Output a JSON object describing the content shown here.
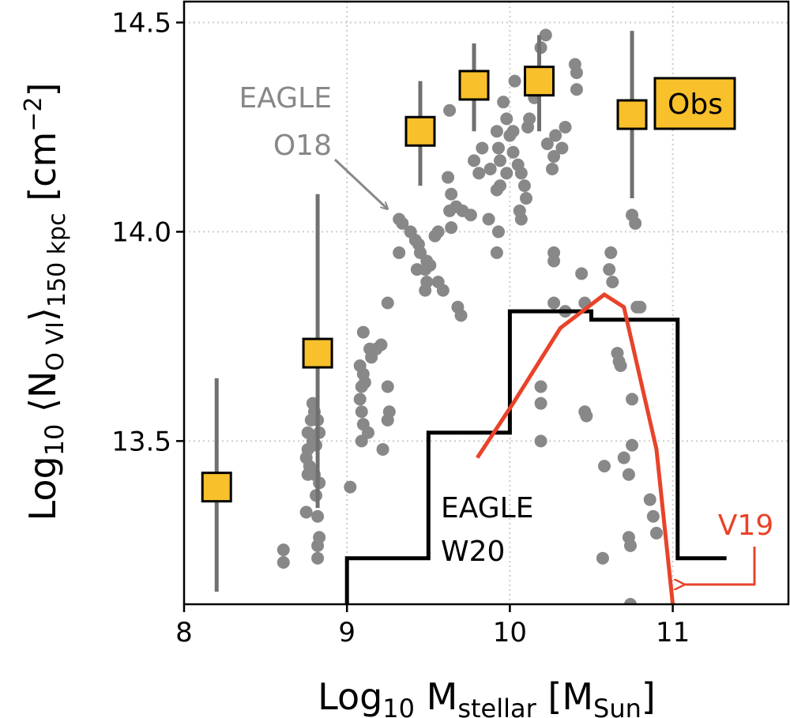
{
  "chart_data": {
    "type": "scatter",
    "xlabel": [
      "Log",
      "10",
      " M",
      "stellar",
      " [M",
      "Sun",
      "]"
    ],
    "ylabel": [
      "Log",
      "10",
      " ⟨N",
      "O VI",
      "⟩",
      "150 kpc",
      " [cm",
      "−2",
      "]"
    ],
    "xlim": [
      8,
      11.71
    ],
    "ylim": [
      13.11,
      14.55
    ],
    "xticks": [
      8,
      9,
      10,
      11
    ],
    "yticks": [
      13.5,
      {
        "value": 14,
        "label": "14.0"
      },
      14.5
    ],
    "grid": true,
    "series": [
      {
        "name": [
          "EAGLE",
          "O18"
        ],
        "type": "scatter",
        "color": "#888888",
        "x": [
          8.61,
          8.61,
          8.75,
          8.76,
          8.79,
          8.8,
          8.78,
          8.76,
          8.79,
          8.81,
          8.75,
          8.77,
          8.76,
          8.8,
          8.83,
          8.81,
          8.82,
          8.83,
          8.82,
          8.82,
          8.83,
          8.82,
          9.02,
          9.08,
          9.09,
          9.1,
          9.09,
          9.13,
          9.1,
          9.09,
          9.11,
          9.14,
          9.15,
          9.18,
          9.21,
          9.25,
          9.22,
          9.26,
          9.25,
          9.25,
          9.08,
          9.1,
          9.32,
          9.32,
          9.34,
          9.39,
          9.42,
          9.44,
          9.45,
          9.49,
          9.48,
          9.43,
          9.51,
          9.49,
          9.54,
          9.56,
          9.48,
          9.56,
          9.59,
          9.68,
          9.7,
          9.71,
          9.63,
          9.67,
          9.76,
          9.64,
          9.62,
          9.64,
          9.63,
          9.78,
          9.81,
          9.83,
          9.87,
          9.88,
          9.92,
          9.93,
          9.94,
          9.94,
          9.98,
          9.92,
          9.93,
          9.92,
          9.96,
          9.98,
          10.0,
          10.02,
          10.02,
          10.03,
          10.05,
          10.07,
          10.09,
          10.06,
          10.07,
          10.1,
          10.11,
          10.12,
          10.15,
          10.17,
          10.19,
          10.22,
          10.23,
          10.26,
          10.27,
          10.28,
          10.32,
          10.34,
          10.27,
          10.27,
          10.27,
          10.19,
          10.19,
          10.19,
          10.34,
          10.4,
          10.41,
          10.41,
          10.44,
          10.46,
          10.46,
          10.47,
          10.58,
          10.57,
          10.61,
          10.62,
          10.63,
          10.66,
          10.67,
          10.68,
          10.7,
          10.73,
          10.75,
          10.75,
          10.77,
          10.78,
          10.8,
          10.73,
          10.74,
          10.75,
          10.86,
          10.88,
          10.9,
          10.74
        ],
        "values": [
          13.24,
          13.21,
          13.33,
          13.48,
          13.59,
          13.57,
          13.55,
          13.52,
          13.5,
          13.49,
          13.46,
          13.44,
          13.42,
          13.42,
          13.4,
          13.37,
          13.32,
          13.27,
          13.25,
          13.22,
          13.52,
          13.55,
          13.39,
          13.6,
          13.57,
          13.54,
          13.5,
          13.52,
          13.66,
          13.63,
          13.64,
          13.72,
          13.7,
          13.72,
          13.73,
          13.83,
          13.48,
          13.57,
          13.55,
          13.63,
          13.68,
          13.76,
          13.95,
          14.03,
          14.02,
          14.0,
          13.98,
          13.97,
          13.95,
          13.93,
          13.91,
          13.91,
          13.92,
          13.88,
          13.99,
          14.0,
          13.86,
          13.88,
          13.86,
          13.82,
          13.8,
          14.05,
          14.05,
          14.06,
          14.04,
          14.01,
          14.13,
          14.09,
          14.29,
          14.17,
          14.14,
          14.2,
          14.03,
          14.15,
          14.24,
          14.2,
          14.17,
          14.11,
          14.14,
          14.1,
          14.0,
          13.95,
          14.31,
          14.27,
          14.23,
          14.19,
          14.24,
          14.36,
          14.16,
          14.14,
          14.11,
          14.05,
          14.03,
          14.08,
          14.25,
          14.27,
          14.32,
          14.38,
          14.44,
          14.47,
          14.21,
          14.15,
          14.18,
          14.23,
          14.2,
          14.25,
          13.95,
          13.93,
          13.83,
          13.63,
          13.59,
          13.5,
          13.81,
          14.4,
          14.38,
          14.34,
          13.9,
          13.83,
          13.57,
          13.56,
          13.44,
          13.22,
          13.91,
          13.95,
          13.88,
          13.71,
          13.69,
          13.68,
          13.46,
          13.42,
          13.6,
          14.04,
          14.02,
          13.82,
          13.82,
          13.27,
          13.25,
          13.49,
          13.36,
          13.32,
          13.28,
          13.11
        ]
      },
      {
        "name": "Obs",
        "type": "errorbar",
        "color": "#f8c02a",
        "error_color": "#707070",
        "x": [
          8.2,
          8.82,
          9.45,
          9.78,
          10.18,
          10.75
        ],
        "values": [
          13.39,
          13.71,
          14.24,
          14.35,
          14.36,
          14.28
        ],
        "low": [
          13.14,
          13.34,
          14.11,
          14.24,
          14.24,
          14.08
        ],
        "high": [
          13.65,
          14.09,
          14.36,
          14.45,
          14.47,
          14.48
        ]
      },
      {
        "name": [
          "EAGLE",
          "W20"
        ],
        "type": "step",
        "color": "#000000",
        "x": [
          9.0,
          9.0,
          9.5,
          9.5,
          10.0,
          10.0,
          10.5,
          10.5,
          11.03,
          11.03,
          11.33
        ],
        "values": [
          13.1,
          13.22,
          13.22,
          13.52,
          13.52,
          13.81,
          13.81,
          13.79,
          13.79,
          13.22,
          13.22
        ]
      },
      {
        "name": "V19",
        "type": "line",
        "color": "#e8432a",
        "x": [
          9.8,
          10.02,
          10.31,
          10.58,
          10.7,
          10.9,
          11.0
        ],
        "values": [
          13.46,
          13.59,
          13.77,
          13.85,
          13.82,
          13.48,
          13.11
        ]
      }
    ]
  }
}
